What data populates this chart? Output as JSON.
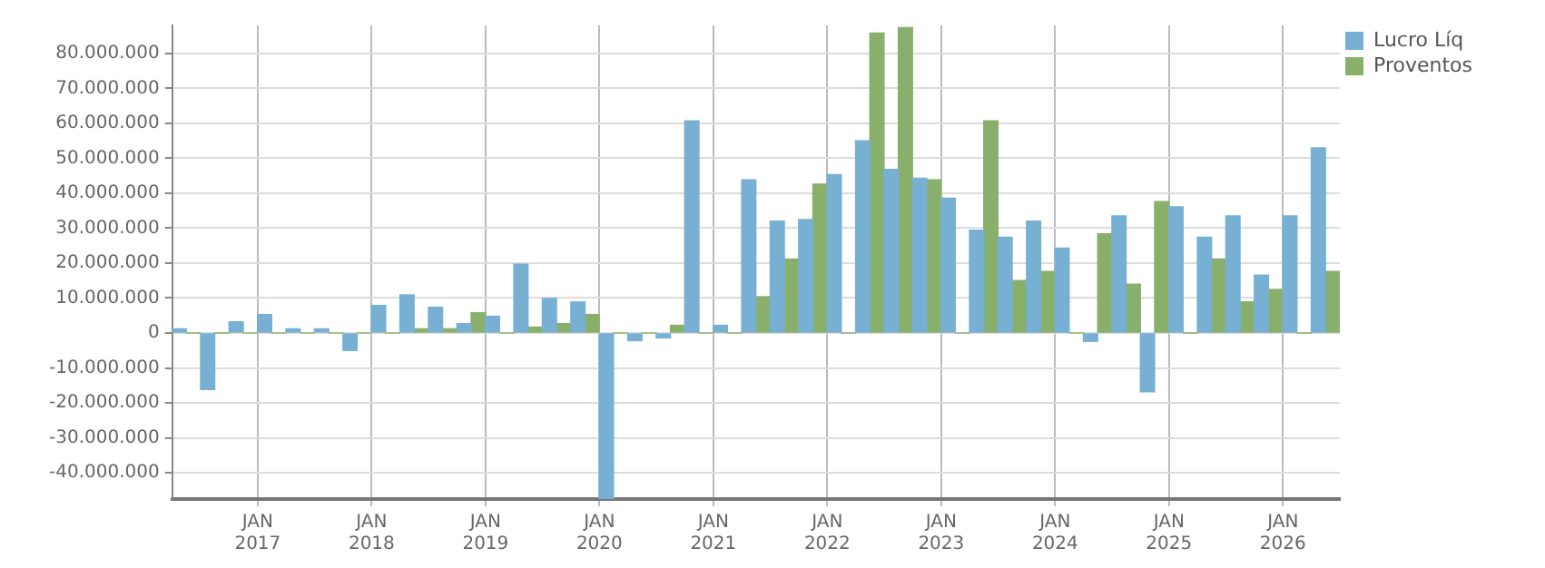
{
  "chart_data": {
    "type": "bar",
    "x": [
      "2016-05-16",
      "2016-08-16",
      "2016-11-16",
      "2017-02-16",
      "2017-05-16",
      "2017-08-16",
      "2017-11-16",
      "2018-02-16",
      "2018-05-16",
      "2018-08-16",
      "2018-11-16",
      "2019-02-16",
      "2019-05-16",
      "2019-08-16",
      "2019-11-16",
      "2020-02-16",
      "2020-05-16",
      "2020-08-16",
      "2020-11-16",
      "2021-02-16",
      "2021-05-16",
      "2021-08-16",
      "2021-11-16",
      "2022-02-16",
      "2022-05-16",
      "2022-08-16",
      "2022-11-16",
      "2023-02-16",
      "2023-05-16",
      "2023-08-16",
      "2023-11-16",
      "2024-02-16",
      "2024-05-16",
      "2024-08-16",
      "2024-11-16",
      "2025-02-16",
      "2025-05-16",
      "2025-08-16",
      "2025-11-16",
      "2026-02-16",
      "2026-05-16"
    ],
    "series": [
      {
        "name": "Lucro Líq",
        "color": "#77b0d3",
        "values": [
          1200000,
          -16200000,
          3200000,
          5300000,
          1200000,
          1200000,
          -5000000,
          7900000,
          10900000,
          7400000,
          2700000,
          4800000,
          19700000,
          9900000,
          8900000,
          -47500000,
          -2200000,
          -1400000,
          60700000,
          2200000,
          43800000,
          32000000,
          32500000,
          45300000,
          55000000,
          46800000,
          44300000,
          38600000,
          29400000,
          27400000,
          32000000,
          24300000,
          -2400000,
          33500000,
          -16800000,
          36100000,
          27400000,
          33500000,
          16600000,
          33500000,
          53000000
        ]
      },
      {
        "name": "Proventos",
        "color": "#88b06a",
        "values": [
          0,
          0,
          0,
          0,
          0,
          0,
          0,
          0,
          1200000,
          1200000,
          5800000,
          0,
          1700000,
          2700000,
          5300000,
          0,
          0,
          2200000,
          0,
          0,
          10400000,
          21200000,
          42600000,
          0,
          85800000,
          87400000,
          43800000,
          0,
          60700000,
          15000000,
          17600000,
          0,
          28400000,
          14000000,
          37600000,
          0,
          21200000,
          8900000,
          12500000,
          0,
          17600000
        ]
      }
    ],
    "xlim": [
      "2016-04",
      "2026-07"
    ],
    "xticks": [
      {
        "value": "2017-01",
        "label": "JAN 2017"
      },
      {
        "value": "2018-01",
        "label": "JAN 2018"
      },
      {
        "value": "2019-01",
        "label": "JAN 2019"
      },
      {
        "value": "2020-01",
        "label": "JAN 2020"
      },
      {
        "value": "2021-01",
        "label": "JAN 2021"
      },
      {
        "value": "2022-01",
        "label": "JAN 2022"
      },
      {
        "value": "2023-01",
        "label": "JAN 2023"
      },
      {
        "value": "2024-01",
        "label": "JAN 2024"
      },
      {
        "value": "2025-01",
        "label": "JAN 2025"
      },
      {
        "value": "2026-01",
        "label": "JAN 2026"
      }
    ],
    "ylim": [
      -47500000,
      88000000
    ],
    "yticks": [
      {
        "value": -40000000,
        "label": "-40.000.000"
      },
      {
        "value": -30000000,
        "label": "-30.000.000"
      },
      {
        "value": -20000000,
        "label": "-20.000.000"
      },
      {
        "value": -10000000,
        "label": "-10.000.000"
      },
      {
        "value": 0,
        "label": "0"
      },
      {
        "value": 10000000,
        "label": "10.000.000"
      },
      {
        "value": 20000000,
        "label": "20.000.000"
      },
      {
        "value": 30000000,
        "label": "30.000.000"
      },
      {
        "value": 40000000,
        "label": "40.000.000"
      },
      {
        "value": 50000000,
        "label": "50.000.000"
      },
      {
        "value": 60000000,
        "label": "60.000.000"
      },
      {
        "value": 70000000,
        "label": "70.000.000"
      },
      {
        "value": 80000000,
        "label": "80.000.000"
      }
    ],
    "grid": true,
    "legend": "top right"
  }
}
